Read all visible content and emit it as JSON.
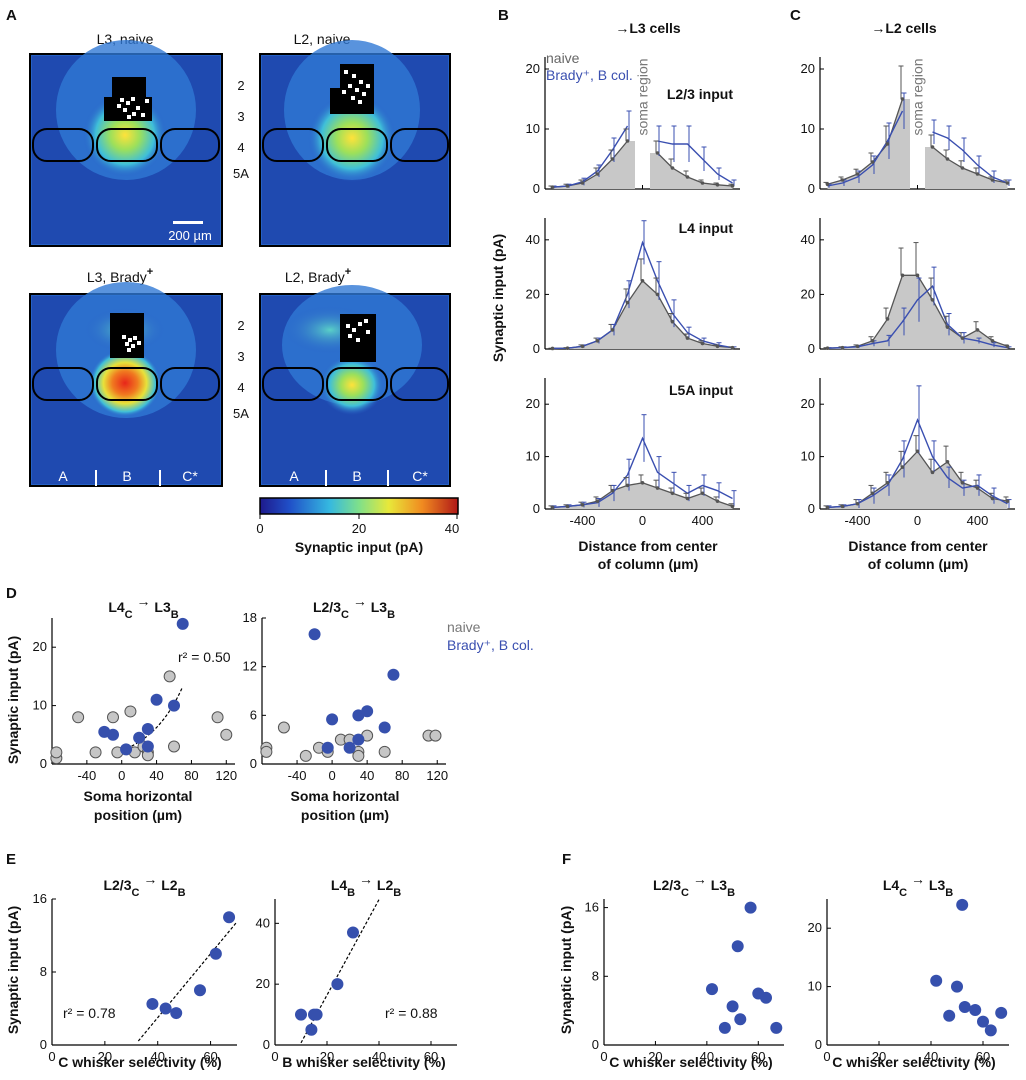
{
  "colors": {
    "naive": "#555555",
    "naive_fill": "#c8c8c8",
    "brady": "#3a4fb0",
    "dot_brady": "#3650ad",
    "dot_naive": "#c6c6c6"
  },
  "panel_labels": [
    "A",
    "B",
    "C",
    "D",
    "E",
    "F"
  ],
  "panel_a": {
    "maps": [
      {
        "title": "L3, naive",
        "sup": ""
      },
      {
        "title": "L2, naive",
        "sup": ""
      },
      {
        "title": "L3, Brady",
        "sup": "+"
      },
      {
        "title": "L2, Brady",
        "sup": "+"
      }
    ],
    "layers": [
      "2",
      "3",
      "4",
      "5A"
    ],
    "scale_bar": "200 µm",
    "columns": [
      "A",
      "B",
      "C*"
    ],
    "colorbar": {
      "ticks": [
        "0",
        "20",
        "40"
      ],
      "label": "Synaptic input (pA)"
    }
  },
  "panel_b": {
    "heading": "→L3 cells"
  },
  "panel_c": {
    "heading": "→L2 cells"
  },
  "shared": {
    "soma_region": "soma region",
    "ylabel": "Synaptic input (pA)",
    "xlabel_1": "Distance from center",
    "xlabel_2": "of column (µm)",
    "row_labels": [
      "L2/3 input",
      "L4 input",
      "L5A input"
    ],
    "legend_naive": "naive",
    "legend_brady": "Brady⁺, B col.",
    "d_xlabel_1": "Soma horizontal",
    "d_xlabel_2": "position (µm)"
  },
  "chart_data": [
    {
      "id": "B1",
      "type": "line",
      "title": "L2/3 input",
      "x": [
        -600,
        -500,
        -400,
        -300,
        -200,
        -100,
        100,
        200,
        300,
        400,
        500,
        600
      ],
      "series": [
        {
          "name": "naive",
          "values": [
            0.3,
            0.5,
            1,
            2.5,
            5,
            8,
            6,
            3.5,
            2,
            1,
            0.7,
            0.5
          ]
        },
        {
          "name": "Brady+, B col.",
          "values": [
            0.3,
            0.5,
            1.2,
            3,
            6.5,
            10.5,
            8,
            7.5,
            7.5,
            5,
            2.5,
            1
          ]
        }
      ],
      "errors_naive": [
        0.2,
        0.3,
        0.5,
        1,
        1.5,
        2,
        2,
        1.5,
        1,
        0.5,
        0.3,
        0.3
      ],
      "errors_brady": [
        0.2,
        0.3,
        0.6,
        1,
        2,
        2.5,
        2.5,
        3,
        3,
        2,
        1,
        0.5
      ],
      "soma_region": [
        -50,
        50
      ],
      "ylim": [
        0,
        22
      ],
      "yticks": [
        0,
        10,
        20
      ],
      "xlim": [
        -650,
        650
      ],
      "xticks": [
        -400,
        0,
        400
      ]
    },
    {
      "id": "B2",
      "type": "line",
      "title": "L4 input",
      "x": [
        -600,
        -500,
        -400,
        -300,
        -200,
        -100,
        0,
        100,
        200,
        300,
        400,
        500,
        600
      ],
      "series": [
        {
          "name": "naive",
          "values": [
            0.2,
            0.3,
            1,
            3,
            7,
            17,
            25,
            20,
            10,
            4,
            2,
            1,
            0.5
          ]
        },
        {
          "name": "Brady+, B col.",
          "values": [
            0.2,
            0.3,
            1,
            3,
            7,
            20,
            39,
            25,
            13,
            6,
            3,
            1.5,
            0.5
          ]
        }
      ],
      "errors_naive": [
        0.1,
        0.2,
        0.5,
        1,
        2,
        5,
        8,
        6,
        3,
        1.5,
        1,
        0.5,
        0.3
      ],
      "errors_brady": [
        0.1,
        0.2,
        0.5,
        1,
        2,
        5,
        8,
        7,
        5,
        2,
        1,
        0.8,
        0.3
      ],
      "soma_region": null,
      "ylim": [
        0,
        48
      ],
      "yticks": [
        0,
        20,
        40
      ],
      "xlim": [
        -650,
        650
      ],
      "xticks": [
        -400,
        0,
        400
      ]
    },
    {
      "id": "B3",
      "type": "line",
      "title": "L5A input",
      "x": [
        -600,
        -500,
        -400,
        -300,
        -200,
        -100,
        0,
        100,
        200,
        300,
        400,
        500,
        600
      ],
      "series": [
        {
          "name": "naive",
          "values": [
            0.3,
            0.5,
            0.8,
            1.5,
            3.5,
            4.5,
            5,
            4,
            3,
            2,
            3,
            1.5,
            0.5
          ]
        },
        {
          "name": "Brady+, B col.",
          "values": [
            0.3,
            0.5,
            0.8,
            1.2,
            3,
            6.5,
            13.5,
            7,
            5,
            3,
            4.5,
            3.5,
            2
          ]
        }
      ],
      "errors_naive": [
        0.3,
        0.3,
        0.5,
        0.8,
        1,
        1.5,
        1.5,
        1.5,
        1,
        1,
        1,
        0.8,
        0.5
      ],
      "errors_brady": [
        0.3,
        0.3,
        0.5,
        0.8,
        1.5,
        3,
        4.5,
        3,
        2,
        1.5,
        2,
        1.5,
        1.5
      ],
      "soma_region": null,
      "ylim": [
        0,
        25
      ],
      "yticks": [
        0,
        10,
        20
      ],
      "xlim": [
        -650,
        650
      ],
      "xticks": [
        -400,
        0,
        400
      ]
    },
    {
      "id": "C1",
      "type": "line",
      "title": "",
      "x": [
        -600,
        -500,
        -400,
        -300,
        -200,
        -100,
        100,
        200,
        300,
        400,
        500,
        600
      ],
      "series": [
        {
          "name": "naive",
          "values": [
            0.8,
            1.5,
            2.5,
            4.5,
            7.5,
            15,
            7,
            5,
            3.5,
            2.5,
            1.5,
            1
          ]
        },
        {
          "name": "Brady+, B col.",
          "values": [
            0.5,
            1,
            2,
            4,
            8,
            13,
            9.5,
            8.5,
            6.5,
            4,
            2,
            1
          ]
        }
      ],
      "errors_naive": [
        0.3,
        0.5,
        0.8,
        1.5,
        3,
        5.5,
        2,
        1.5,
        1.2,
        1,
        0.5,
        0.5
      ],
      "errors_brady": [
        0.3,
        0.5,
        1,
        1.5,
        3,
        3,
        2,
        2,
        2,
        1.5,
        1,
        0.5
      ],
      "soma_region": [
        -50,
        50
      ],
      "ylim": [
        0,
        22
      ],
      "yticks": [
        0,
        10,
        20
      ],
      "xlim": [
        -650,
        650
      ],
      "xticks": [
        -400,
        0,
        400
      ]
    },
    {
      "id": "C2",
      "type": "line",
      "title": "",
      "x": [
        -600,
        -500,
        -400,
        -300,
        -200,
        -100,
        0,
        100,
        200,
        300,
        400,
        500,
        600
      ],
      "series": [
        {
          "name": "naive",
          "values": [
            0.3,
            0.5,
            1,
            3,
            11,
            27,
            27,
            18,
            8,
            4,
            7,
            3,
            1
          ]
        },
        {
          "name": "Brady+, B col.",
          "values": [
            0.3,
            0.5,
            0.8,
            2,
            3,
            10,
            18,
            23,
            9,
            4,
            3,
            1.5,
            0.5
          ]
        }
      ],
      "errors_naive": [
        0.2,
        0.3,
        0.5,
        1.5,
        4,
        10,
        12,
        8,
        4,
        2,
        3,
        1.5,
        0.5
      ],
      "errors_brady": [
        0.2,
        0.3,
        0.5,
        1,
        2,
        5,
        8,
        7,
        4,
        2,
        1,
        0.8,
        0.3
      ],
      "soma_region": null,
      "ylim": [
        0,
        48
      ],
      "yticks": [
        0,
        20,
        40
      ],
      "xlim": [
        -650,
        650
      ],
      "xticks": [
        -400,
        0,
        400
      ]
    },
    {
      "id": "C3",
      "type": "line",
      "title": "",
      "x": [
        -600,
        -500,
        -400,
        -300,
        -200,
        -100,
        0,
        100,
        200,
        300,
        400,
        500,
        600
      ],
      "series": [
        {
          "name": "naive",
          "values": [
            0.3,
            0.5,
            1,
            3,
            5,
            8,
            11,
            7,
            9,
            5,
            4,
            2,
            1.5
          ]
        },
        {
          "name": "Brady+, B col.",
          "values": [
            0.3,
            0.5,
            1,
            2.5,
            4.5,
            9.5,
            17,
            10,
            6,
            4,
            4.5,
            2.5,
            1
          ]
        }
      ],
      "errors_naive": [
        0.3,
        0.3,
        0.8,
        1.5,
        2,
        3,
        3,
        2.5,
        3,
        2,
        1.5,
        1,
        0.8
      ],
      "errors_brady": [
        0.3,
        0.3,
        0.8,
        1.5,
        2,
        3.5,
        6.5,
        3,
        2,
        1.5,
        2,
        1.5,
        0.8
      ],
      "soma_region": null,
      "ylim": [
        0,
        25
      ],
      "yticks": [
        0,
        10,
        20
      ],
      "xlim": [
        -650,
        650
      ],
      "xticks": [
        -400,
        0,
        400
      ]
    },
    {
      "id": "D1",
      "type": "scatter",
      "title": "L4",
      "title_sub": "C",
      "title_arrow": "→",
      "title_tgt": "L3",
      "title_tgt_sub": "B",
      "r2": "r² = 0.50",
      "naive": [
        [
          -75,
          1
        ],
        [
          -75,
          2
        ],
        [
          -50,
          8
        ],
        [
          -30,
          2
        ],
        [
          -10,
          8
        ],
        [
          -5,
          2
        ],
        [
          10,
          9
        ],
        [
          15,
          2
        ],
        [
          25,
          3
        ],
        [
          30,
          2
        ],
        [
          30,
          1.5
        ],
        [
          55,
          15
        ],
        [
          60,
          3
        ],
        [
          110,
          8
        ],
        [
          120,
          5
        ]
      ],
      "brady": [
        [
          -20,
          5.5
        ],
        [
          -10,
          5
        ],
        [
          5,
          2.5
        ],
        [
          20,
          4.5
        ],
        [
          30,
          3
        ],
        [
          30,
          6
        ],
        [
          40,
          11
        ],
        [
          60,
          10
        ],
        [
          70,
          24
        ]
      ],
      "fit": {
        "x0": -10,
        "x1": 70,
        "a": 2.3,
        "b": 0.025
      },
      "xlim": [
        -80,
        130
      ],
      "ylim": [
        0,
        25
      ],
      "xticks": [
        -40,
        0,
        40,
        80,
        120
      ],
      "yticks": [
        0,
        10,
        20
      ]
    },
    {
      "id": "D2",
      "type": "scatter",
      "title": "L2/3",
      "title_sub": "C",
      "title_arrow": "→",
      "title_tgt": "L3",
      "title_tgt_sub": "B",
      "naive": [
        [
          -75,
          2
        ],
        [
          -75,
          1.5
        ],
        [
          -55,
          4.5
        ],
        [
          -30,
          1
        ],
        [
          -15,
          2
        ],
        [
          -5,
          1.5
        ],
        [
          10,
          3
        ],
        [
          20,
          3
        ],
        [
          30,
          1.5
        ],
        [
          30,
          1
        ],
        [
          40,
          3.5
        ],
        [
          60,
          1.5
        ],
        [
          110,
          3.5
        ],
        [
          118,
          3.5
        ]
      ],
      "brady": [
        [
          -20,
          16
        ],
        [
          -5,
          2
        ],
        [
          0,
          5.5
        ],
        [
          20,
          2
        ],
        [
          30,
          3
        ],
        [
          30,
          6
        ],
        [
          40,
          6.5
        ],
        [
          60,
          4.5
        ],
        [
          70,
          11
        ]
      ],
      "xlim": [
        -80,
        130
      ],
      "ylim": [
        0,
        18
      ],
      "xticks": [
        -40,
        0,
        40,
        80,
        120
      ],
      "yticks": [
        0,
        6,
        12,
        18
      ]
    },
    {
      "id": "E1",
      "type": "scatter",
      "title": "L2/3",
      "title_sub": "C",
      "title_arrow": "→",
      "title_tgt": "L2",
      "title_tgt_sub": "B",
      "r2": "r² = 0.78",
      "xlabel": "C whisker selectivity (%)",
      "ylabel": "Synaptic input (pA)",
      "brady": [
        [
          38,
          4.5
        ],
        [
          43,
          4
        ],
        [
          47,
          3.5
        ],
        [
          56,
          6
        ],
        [
          62,
          10
        ],
        [
          67,
          14
        ]
      ],
      "fit": {
        "x0": 30,
        "x1": 70,
        "slope": 0.35,
        "intercept": -11
      },
      "xlim": [
        0,
        70
      ],
      "ylim": [
        0,
        16
      ],
      "xticks": [
        0,
        20,
        40,
        60
      ],
      "yticks": [
        0,
        8,
        16
      ]
    },
    {
      "id": "E2",
      "type": "scatter",
      "title": "L4",
      "title_sub": "B",
      "title_arrow": "→",
      "title_tgt": "L2",
      "title_tgt_sub": "B",
      "r2": "r² = 0.88",
      "xlabel": "B whisker selectivity (%)",
      "brady": [
        [
          10,
          10
        ],
        [
          14,
          5
        ],
        [
          15,
          10
        ],
        [
          16,
          10
        ],
        [
          24,
          20
        ],
        [
          30,
          37
        ]
      ],
      "fit": {
        "x0": 10,
        "x1": 40,
        "slope": 1.57,
        "intercept": -15
      },
      "xlim": [
        0,
        70
      ],
      "ylim": [
        0,
        48
      ],
      "xticks": [
        0,
        20,
        40,
        60
      ],
      "yticks": [
        0,
        20,
        40
      ]
    },
    {
      "id": "F1",
      "type": "scatter",
      "title": "L2/3",
      "title_sub": "C",
      "title_arrow": "→",
      "title_tgt": "L3",
      "title_tgt_sub": "B",
      "xlabel": "C whisker selectivity (%)",
      "ylabel": "Synaptic input (pA)",
      "brady": [
        [
          42,
          6.5
        ],
        [
          47,
          2
        ],
        [
          50,
          4.5
        ],
        [
          52,
          11.5
        ],
        [
          53,
          3
        ],
        [
          57,
          16
        ],
        [
          60,
          6
        ],
        [
          63,
          5.5
        ],
        [
          67,
          2
        ]
      ],
      "xlim": [
        0,
        70
      ],
      "ylim": [
        0,
        17
      ],
      "xticks": [
        0,
        20,
        40,
        60
      ],
      "yticks": [
        0,
        8,
        16
      ]
    },
    {
      "id": "F2",
      "type": "scatter",
      "title": "L4",
      "title_sub": "C",
      "title_arrow": "→",
      "title_tgt": "L3",
      "title_tgt_sub": "B",
      "xlabel": "C whisker selectivity (%)",
      "brady": [
        [
          42,
          11
        ],
        [
          47,
          5
        ],
        [
          50,
          10
        ],
        [
          53,
          6.5
        ],
        [
          57,
          6
        ],
        [
          60,
          4
        ],
        [
          63,
          2.5
        ],
        [
          67,
          5.5
        ],
        [
          52,
          24
        ]
      ],
      "xlim": [
        0,
        70
      ],
      "ylim": [
        0,
        25
      ],
      "xticks": [
        0,
        20,
        40,
        60
      ],
      "yticks": [
        0,
        10,
        20
      ]
    }
  ]
}
